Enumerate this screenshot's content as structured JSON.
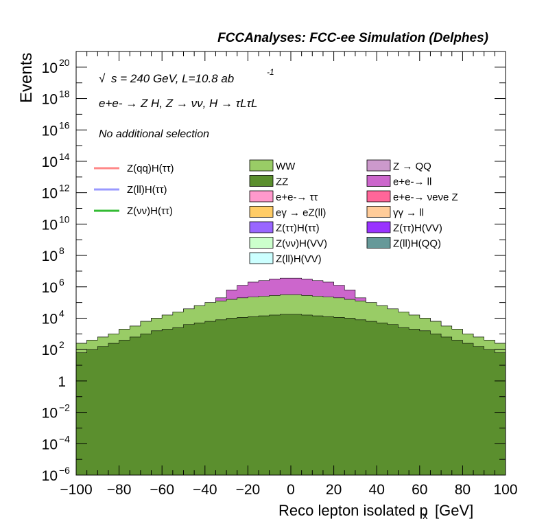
{
  "chart_data": {
    "type": "area",
    "title": "FCCAnalyses: FCC-ee Simulation (Delphes)",
    "xlabel": "Reco lepton isolated p",
    "xlabel_sub": "x",
    "xlabel_unit": "[GeV]",
    "ylabel": "Events",
    "xlim": [
      -100,
      100
    ],
    "ylim_log10": [
      -6,
      21
    ],
    "yscale": "log",
    "x_ticks": [
      "−100",
      "−80",
      "−60",
      "−40",
      "−20",
      "0",
      "20",
      "40",
      "60",
      "80",
      "100"
    ],
    "y_ticks": [
      {
        "exp": -6,
        "label": "10",
        "sup": "−6"
      },
      {
        "exp": -4,
        "label": "10",
        "sup": "−4"
      },
      {
        "exp": -2,
        "label": "10",
        "sup": "−2"
      },
      {
        "exp": 0,
        "label": "1",
        "sup": ""
      },
      {
        "exp": 2,
        "label": "10",
        "sup": "2"
      },
      {
        "exp": 4,
        "label": "10",
        "sup": "4"
      },
      {
        "exp": 6,
        "label": "10",
        "sup": "6"
      },
      {
        "exp": 8,
        "label": "10",
        "sup": "8"
      },
      {
        "exp": 10,
        "label": "10",
        "sup": "10"
      },
      {
        "exp": 12,
        "label": "10",
        "sup": "12"
      },
      {
        "exp": 14,
        "label": "10",
        "sup": "14"
      },
      {
        "exp": 16,
        "label": "10",
        "sup": "16"
      },
      {
        "exp": 18,
        "label": "10",
        "sup": "18"
      },
      {
        "exp": 20,
        "label": "10",
        "sup": "20"
      }
    ],
    "annotations": {
      "energy": "s = 240 GeV, L=10.8 ab",
      "lumi_exp": "-1",
      "process": "e+e- → Z H, Z → νν, H → τLτL",
      "selection": "No additional selection"
    },
    "stack_bands_log10": [
      {
        "name": "ZZ",
        "color": "#5b8f2e",
        "top": [
          1.8,
          2.0,
          2.2,
          2.4,
          2.6,
          2.8,
          3.0,
          3.2,
          3.3,
          3.4,
          3.6,
          3.7,
          3.8,
          3.9,
          4.0,
          4.05,
          4.1,
          4.15,
          4.2,
          4.25,
          4.25,
          4.2,
          4.15,
          4.1,
          4.05,
          4.0,
          3.9,
          3.8,
          3.7,
          3.6,
          3.4,
          3.3,
          3.2,
          3.0,
          2.8,
          2.6,
          2.4,
          2.2,
          2.0,
          1.8
        ]
      },
      {
        "name": "WW",
        "color": "#99cc66",
        "top": [
          2.4,
          2.6,
          2.8,
          3.0,
          3.3,
          3.5,
          3.8,
          4.0,
          4.2,
          4.4,
          4.6,
          4.8,
          5.0,
          5.1,
          5.2,
          5.3,
          5.35,
          5.4,
          5.45,
          5.5,
          5.5,
          5.45,
          5.4,
          5.35,
          5.3,
          5.2,
          5.1,
          5.0,
          4.8,
          4.6,
          4.4,
          4.2,
          4.0,
          3.8,
          3.5,
          3.3,
          3.0,
          2.8,
          2.6,
          2.4
        ]
      },
      {
        "name": "e+e-→ ll",
        "color": "#cc66cc",
        "top": [
          2.4,
          2.6,
          2.8,
          3.0,
          3.3,
          3.5,
          3.8,
          4.0,
          4.2,
          4.4,
          4.6,
          4.8,
          5.0,
          5.3,
          5.8,
          6.1,
          6.3,
          6.4,
          6.5,
          6.55,
          6.55,
          6.5,
          6.4,
          6.3,
          6.1,
          5.8,
          5.3,
          5.0,
          4.8,
          4.6,
          4.4,
          4.2,
          4.0,
          3.8,
          3.5,
          3.3,
          3.0,
          2.8,
          2.6,
          2.4
        ]
      }
    ],
    "legend": {
      "lines": [
        {
          "label": "Z(qq)H(ττ)",
          "color": "#ff8888"
        },
        {
          "label": "Z(ll)H(ττ)",
          "color": "#9999ff"
        },
        {
          "label": "Z(νν)H(ττ)",
          "color": "#33bb33"
        }
      ],
      "fills": [
        {
          "label": "WW",
          "color": "#99cc66"
        },
        {
          "label": "Z → QQ",
          "color": "#cc99cc"
        },
        {
          "label": "ZZ",
          "color": "#5b8f2e"
        },
        {
          "label": "e+e-→ ll",
          "color": "#cc66cc"
        },
        {
          "label": "e+e-→ ττ",
          "color": "#ff99cc"
        },
        {
          "label": "e+e-→ νeνe Z",
          "color": "#ff6699"
        },
        {
          "label": "eγ → eZ(ll)",
          "color": "#ffcc66"
        },
        {
          "label": "γγ → ll",
          "color": "#ffcc99"
        },
        {
          "label": "Z(ττ)H(ττ)",
          "color": "#9966ff"
        },
        {
          "label": "Z(ττ)H(VV)",
          "color": "#9933ff"
        },
        {
          "label": "Z(νν)H(VV)",
          "color": "#ccffcc"
        },
        {
          "label": "Z(ll)H(QQ)",
          "color": "#669999"
        },
        {
          "label": "Z(ll)H(VV)",
          "color": "#ccffff"
        }
      ]
    }
  }
}
